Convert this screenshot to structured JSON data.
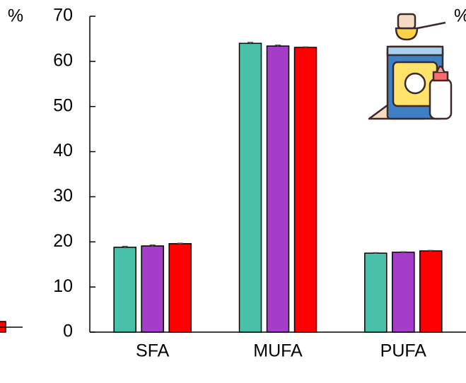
{
  "chart_data": {
    "type": "bar",
    "y_unit": "%",
    "categories": [
      "SFA",
      "MUFA",
      "PUFA"
    ],
    "series": [
      {
        "color": "#48c1a8",
        "values": [
          18.8,
          64.0,
          17.5
        ],
        "errors": [
          0.2,
          0.2,
          0.1
        ]
      },
      {
        "color": "#a43dc8",
        "values": [
          19.1,
          63.4,
          17.7
        ],
        "errors": [
          0.2,
          0.2,
          0.1
        ]
      },
      {
        "color": "#ff0000",
        "values": [
          19.6,
          63.1,
          18.0
        ],
        "errors": [
          0.1,
          0.1,
          0.1
        ]
      }
    ],
    "ylim": [
      0,
      70
    ],
    "yticks": [
      0,
      10,
      20,
      30,
      40,
      50,
      60,
      70
    ]
  }
}
